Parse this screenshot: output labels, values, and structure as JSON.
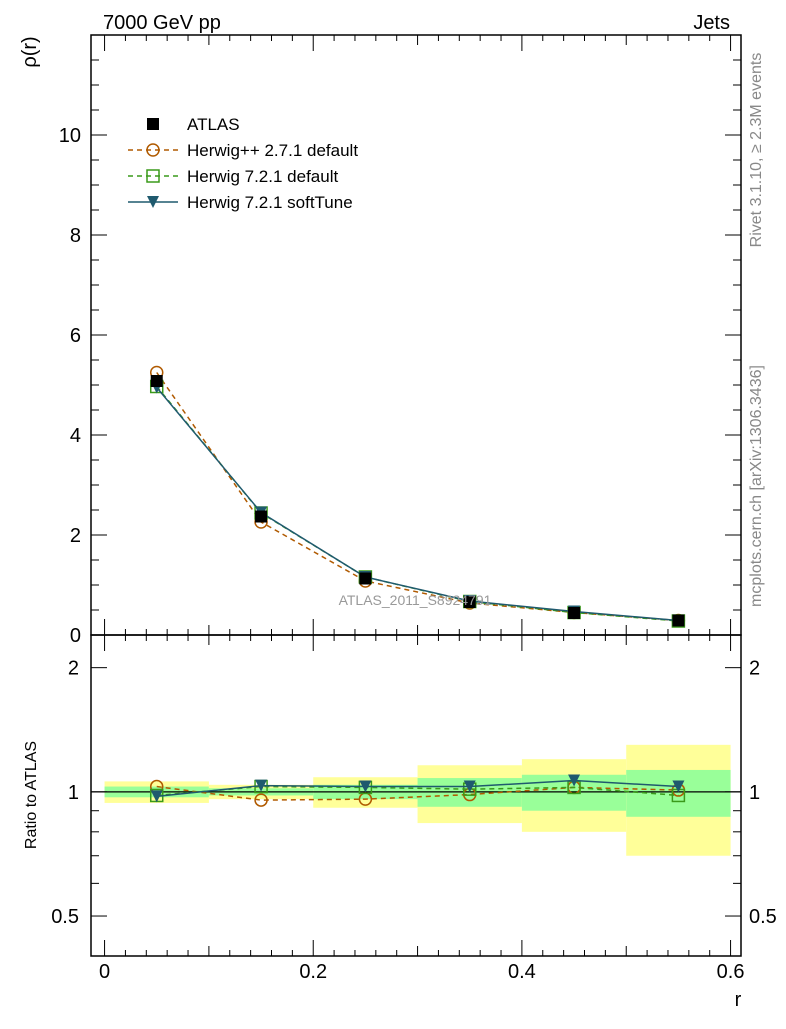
{
  "header": {
    "energy_label": "7000 GeV pp",
    "process_label": "Jets"
  },
  "side_labels": {
    "rivet": "Rivet 3.1.10, ≥ 2.3M events",
    "source": "mcplots.cern.ch [arXiv:1306.3436]"
  },
  "watermark": "ATLAS_2011_S8924791",
  "chart_data": [
    {
      "type": "line",
      "panel": "main",
      "ylabel": "ρ(r)",
      "ylim": [
        0,
        12
      ],
      "yticks": [
        0,
        2,
        4,
        6,
        8,
        10
      ],
      "x": [
        0.05,
        0.15,
        0.25,
        0.35,
        0.45,
        0.55
      ],
      "xlim": [
        -0.013,
        0.61
      ],
      "series": [
        {
          "name": "ATLAS",
          "marker": "square-filled",
          "color": "#000000",
          "values": [
            5.08,
            2.37,
            1.13,
            0.66,
            0.44,
            0.29
          ]
        },
        {
          "name": "Herwig++ 2.7.1 default",
          "marker": "circle-open",
          "color": "#b05a00",
          "dashed": true,
          "values": [
            5.25,
            2.26,
            1.08,
            0.64,
            0.45,
            0.29
          ]
        },
        {
          "name": "Herwig 7.2.1 default",
          "marker": "square-open",
          "color": "#3a9a1a",
          "dashed": true,
          "values": [
            4.97,
            2.44,
            1.16,
            0.67,
            0.45,
            0.28
          ]
        },
        {
          "name": "Herwig 7.2.1 softTune",
          "marker": "triangle-down-filled",
          "color": "#1f5a6e",
          "dashed": false,
          "values": [
            4.95,
            2.45,
            1.16,
            0.68,
            0.47,
            0.29
          ]
        }
      ],
      "legend_position": "top-left",
      "grid": false
    },
    {
      "type": "line",
      "panel": "ratio",
      "xlabel": "r",
      "ylabel": "Ratio to ATLAS",
      "ylim": [
        0.4,
        2.4
      ],
      "scale": "log",
      "yticks": [
        0.5,
        1,
        2
      ],
      "xticks": [
        0,
        0.2,
        0.4,
        0.6
      ],
      "xlim": [
        -0.013,
        0.61
      ],
      "bands": {
        "bins": [
          [
            0.0,
            0.1
          ],
          [
            0.1,
            0.2
          ],
          [
            0.2,
            0.3
          ],
          [
            0.3,
            0.4
          ],
          [
            0.4,
            0.5
          ],
          [
            0.5,
            0.6
          ]
        ],
        "outer": [
          [
            0.94,
            1.06
          ],
          [
            0.96,
            1.04
          ],
          [
            0.915,
            1.085
          ],
          [
            0.84,
            1.16
          ],
          [
            0.8,
            1.2
          ],
          [
            0.7,
            1.3
          ]
        ],
        "inner": [
          [
            0.97,
            1.03
          ],
          [
            0.98,
            1.02
          ],
          [
            0.96,
            1.04
          ],
          [
            0.92,
            1.08
          ],
          [
            0.9,
            1.1
          ],
          [
            0.87,
            1.13
          ]
        ],
        "outer_color": "#ffff99",
        "inner_color": "#99ff99"
      },
      "series": [
        {
          "name": "Herwig++ 2.7.1 default",
          "color": "#b05a00",
          "dashed": true,
          "marker": "circle-open",
          "values": [
            1.03,
            0.955,
            0.96,
            0.985,
            1.025,
            1.01
          ]
        },
        {
          "name": "Herwig 7.2.1 default",
          "color": "#3a9a1a",
          "dashed": true,
          "marker": "square-open",
          "values": [
            0.98,
            1.03,
            1.025,
            1.015,
            1.025,
            0.98
          ]
        },
        {
          "name": "Herwig 7.2.1 softTune",
          "color": "#1f5a6e",
          "dashed": false,
          "marker": "triangle-down-filled",
          "values": [
            0.975,
            1.035,
            1.03,
            1.03,
            1.065,
            1.03
          ]
        }
      ]
    }
  ]
}
